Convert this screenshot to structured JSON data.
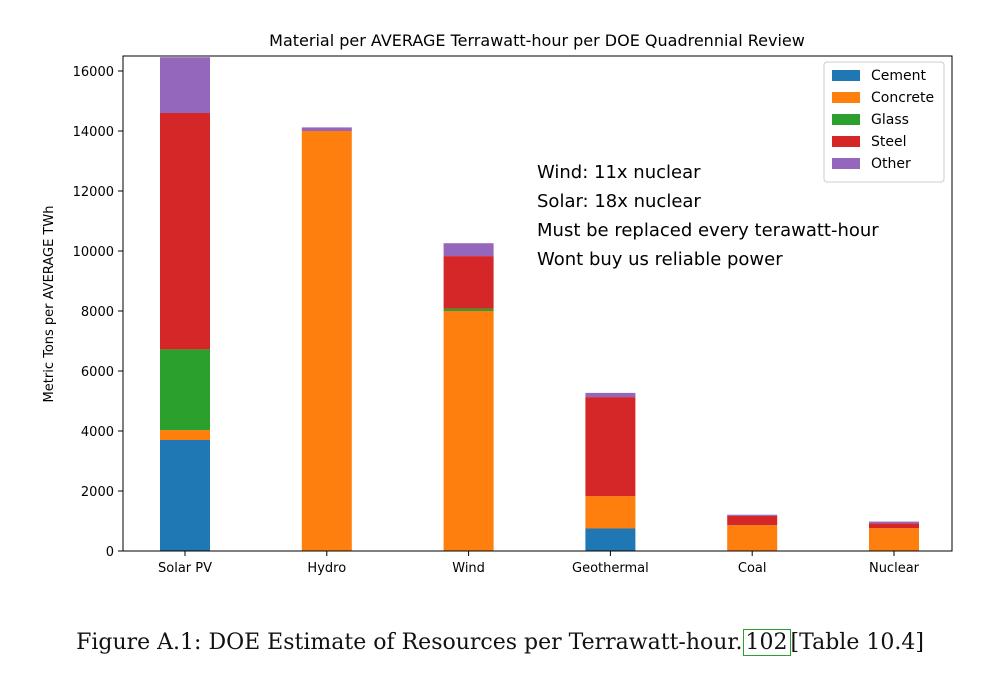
{
  "chart_data": {
    "type": "bar",
    "stacked": true,
    "title": "Material per AVERAGE Terrawatt-hour per DOE Quadrennial Review",
    "xlabel": "",
    "ylabel": "Metric Tons per AVERAGE TWh",
    "categories": [
      "Solar PV",
      "Hydro",
      "Wind",
      "Geothermal",
      "Coal",
      "Nuclear"
    ],
    "series": [
      {
        "name": "Cement",
        "color": "#1f77b4",
        "values": [
          3700,
          0,
          0,
          750,
          0,
          0
        ]
      },
      {
        "name": "Concrete",
        "color": "#ff7f0e",
        "values": [
          330,
          14000,
          8000,
          1080,
          860,
          760
        ]
      },
      {
        "name": "Glass",
        "color": "#2ca02c",
        "values": [
          2690,
          0,
          80,
          0,
          0,
          0
        ]
      },
      {
        "name": "Steel",
        "color": "#d62728",
        "values": [
          7880,
          0,
          1750,
          3300,
          310,
          160
        ]
      },
      {
        "name": "Other",
        "color": "#9467bd",
        "values": [
          1860,
          120,
          430,
          140,
          40,
          60
        ]
      }
    ],
    "ylim": [
      0,
      16500
    ],
    "yticks": [
      0,
      2000,
      4000,
      6000,
      8000,
      10000,
      12000,
      14000,
      16000
    ],
    "grid": false,
    "legend_position": "top-right",
    "annotations": [
      "Wind: 11x nuclear",
      "Solar: 18x nuclear",
      "Must be replaced every terawatt-hour",
      "Wont buy us reliable power"
    ]
  },
  "caption": {
    "prefix": "Figure A.1: DOE Estimate of Resources per Terrawatt-hour.",
    "ref": "102",
    "suffix": "[Table 10.4]"
  }
}
